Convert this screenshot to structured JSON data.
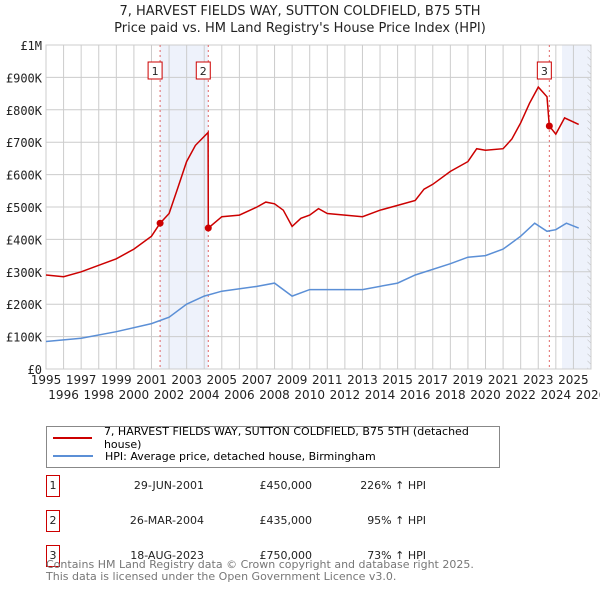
{
  "chart_data": {
    "type": "line",
    "title": "7, HARVEST FIELDS WAY, SUTTON COLDFIELD, B75 5TH",
    "subtitle": "Price paid vs. HM Land Registry's House Price Index (HPI)",
    "xlim": [
      1995,
      2026
    ],
    "ylim": [
      0,
      1000000
    ],
    "x_ticks": [
      1995,
      1996,
      1997,
      1998,
      1999,
      2000,
      2001,
      2002,
      2003,
      2004,
      2005,
      2006,
      2007,
      2008,
      2009,
      2010,
      2011,
      2012,
      2013,
      2014,
      2015,
      2016,
      2017,
      2018,
      2019,
      2020,
      2021,
      2022,
      2023,
      2024,
      2025,
      2026
    ],
    "y_ticks": [
      {
        "v": 0,
        "label": "£0"
      },
      {
        "v": 100000,
        "label": "£100K"
      },
      {
        "v": 200000,
        "label": "£200K"
      },
      {
        "v": 300000,
        "label": "£300K"
      },
      {
        "v": 400000,
        "label": "£400K"
      },
      {
        "v": 500000,
        "label": "£500K"
      },
      {
        "v": 600000,
        "label": "£600K"
      },
      {
        "v": 700000,
        "label": "£700K"
      },
      {
        "v": 800000,
        "label": "£800K"
      },
      {
        "v": 900000,
        "label": "£900K"
      },
      {
        "v": 1000000,
        "label": "£1M"
      }
    ],
    "grid": true,
    "series": [
      {
        "name": "7, HARVEST FIELDS WAY, SUTTON COLDFIELD, B75 5TH (detached house)",
        "color": "#cc0000",
        "x": [
          1995,
          1996,
          1997,
          1998,
          1999,
          2000,
          2001,
          2001.49,
          2002,
          2002.5,
          2003,
          2003.5,
          2004.22,
          2004.23,
          2005,
          2006,
          2007,
          2007.5,
          2008,
          2008.5,
          2009,
          2009.5,
          2010,
          2010.5,
          2011,
          2012,
          2013,
          2014,
          2015,
          2016,
          2016.5,
          2017,
          2018,
          2019,
          2019.5,
          2020,
          2021,
          2021.5,
          2022,
          2022.5,
          2023,
          2023.5,
          2023.63,
          2024,
          2024.5,
          2025.3
        ],
        "y": [
          290000,
          285000,
          300000,
          320000,
          340000,
          370000,
          410000,
          450000,
          480000,
          560000,
          640000,
          690000,
          730000,
          435000,
          470000,
          475000,
          500000,
          515000,
          510000,
          490000,
          440000,
          465000,
          475000,
          495000,
          480000,
          475000,
          470000,
          490000,
          505000,
          520000,
          555000,
          570000,
          610000,
          640000,
          680000,
          675000,
          680000,
          710000,
          760000,
          820000,
          870000,
          840000,
          750000,
          725000,
          775000,
          755000
        ]
      },
      {
        "name": "HPI: Average price, detached house, Birmingham",
        "color": "#5b8fd6",
        "x": [
          1995,
          1997,
          1999,
          2001,
          2002,
          2003,
          2004,
          2005,
          2007,
          2008,
          2009,
          2010,
          2011,
          2013,
          2015,
          2016,
          2018,
          2019,
          2020,
          2021,
          2022,
          2022.8,
          2023.5,
          2024,
          2024.6,
          2025.3
        ],
        "y": [
          85000,
          95000,
          115000,
          140000,
          160000,
          200000,
          225000,
          240000,
          255000,
          265000,
          225000,
          245000,
          245000,
          245000,
          265000,
          290000,
          325000,
          345000,
          350000,
          370000,
          410000,
          450000,
          425000,
          430000,
          450000,
          435000
        ]
      }
    ],
    "sales": [
      {
        "id": "1",
        "x": 2001.49,
        "date": "29-JUN-2001",
        "price_value": 450000,
        "price": "£450,000",
        "hpi": "226% ↑ HPI"
      },
      {
        "id": "2",
        "x": 2004.23,
        "date": "26-MAR-2004",
        "price_value": 435000,
        "price": "£435,000",
        "hpi": "95% ↑ HPI"
      },
      {
        "id": "3",
        "x": 2023.63,
        "date": "18-AUG-2023",
        "price_value": 750000,
        "price": "£750,000",
        "hpi": "73% ↑ HPI"
      }
    ],
    "legend_position": "below"
  },
  "footer": {
    "line1": "Contains HM Land Registry data © Crown copyright and database right 2025.",
    "line2": "This data is licensed under the Open Government Licence v3.0."
  }
}
